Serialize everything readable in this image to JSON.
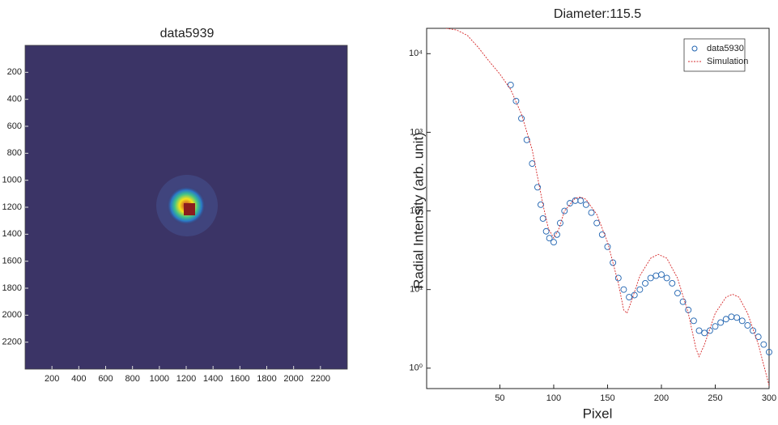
{
  "chart_data": [
    {
      "type": "image",
      "title": "data5939",
      "xlim": [
        0,
        2400
      ],
      "ylim": [
        0,
        2400
      ],
      "yreverse": true,
      "xticks": [
        200,
        400,
        600,
        800,
        1000,
        1200,
        1400,
        1600,
        1800,
        2000,
        2200
      ],
      "yticks": [
        200,
        400,
        600,
        800,
        1000,
        1200,
        1400,
        1600,
        1800,
        2000,
        2200
      ]
    },
    {
      "type": "scatter",
      "title": "Diameter:115.5",
      "xlabel": "Pixel",
      "ylabel": "Radial Intensity (arb. unit)",
      "ylog": true,
      "legend": "upper right",
      "xlim": [
        -18,
        300
      ],
      "ylim": [
        0.55,
        21000
      ],
      "xticks": [
        50,
        100,
        150,
        200,
        250,
        300
      ],
      "yticks": [
        {
          "value": 1,
          "label": "10⁰"
        },
        {
          "value": 10,
          "label": "10¹"
        },
        {
          "value": 100,
          "label": "10²"
        },
        {
          "value": 1000,
          "label": "10³"
        },
        {
          "value": 10000,
          "label": "10⁴"
        }
      ],
      "series": [
        {
          "name": "data5930",
          "color": "#1f63b0",
          "marker": "circle",
          "x": [
            60,
            65,
            70,
            75,
            80,
            85,
            88,
            90,
            93,
            96,
            100,
            103,
            106,
            110,
            115,
            120,
            125,
            130,
            135,
            140,
            145,
            150,
            155,
            160,
            165,
            170,
            175,
            180,
            185,
            190,
            195,
            200,
            205,
            210,
            215,
            220,
            225,
            230,
            235,
            240,
            245,
            250,
            255,
            260,
            265,
            270,
            275,
            280,
            285,
            290,
            295,
            300
          ],
          "values": [
            4000,
            2500,
            1500,
            800,
            400,
            200,
            120,
            80,
            55,
            45,
            40,
            50,
            70,
            100,
            125,
            135,
            135,
            120,
            95,
            70,
            50,
            35,
            22,
            14,
            10,
            8,
            8.5,
            10,
            12,
            14,
            15,
            15.5,
            14,
            12,
            9,
            7,
            5.5,
            4,
            3,
            2.8,
            3,
            3.4,
            3.8,
            4.2,
            4.5,
            4.4,
            4,
            3.5,
            3,
            2.5,
            2,
            1.6
          ]
        },
        {
          "name": "Simulation",
          "color": "#d62728",
          "marker": "line",
          "x": [
            0,
            10,
            20,
            30,
            40,
            50,
            60,
            70,
            80,
            90,
            95,
            100,
            105,
            110,
            120,
            125,
            130,
            140,
            150,
            160,
            165,
            168,
            172,
            180,
            190,
            197,
            205,
            215,
            225,
            232,
            235,
            240,
            250,
            260,
            266,
            272,
            280,
            290,
            300
          ],
          "values": [
            21000,
            20000,
            17000,
            12000,
            8000,
            5500,
            3500,
            1700,
            600,
            120,
            60,
            45,
            60,
            100,
            145,
            150,
            140,
            90,
            40,
            12,
            5.5,
            5,
            7,
            15,
            25,
            28,
            25,
            14,
            5,
            1.8,
            1.4,
            2,
            5,
            8,
            8.7,
            8,
            5,
            2,
            0.6
          ]
        }
      ]
    }
  ]
}
